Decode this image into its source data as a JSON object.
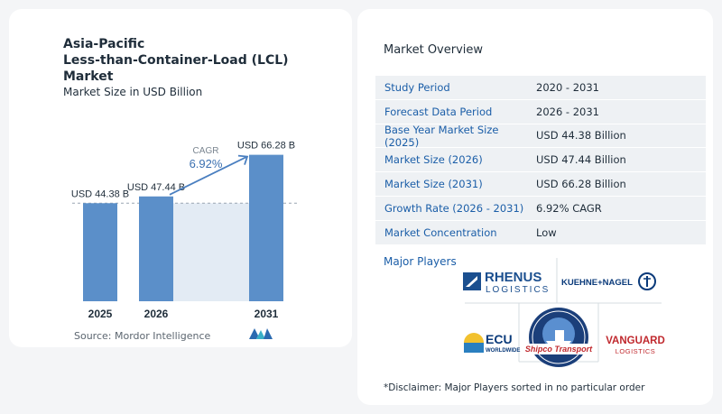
{
  "chart_data": {
    "type": "bar",
    "title": "Asia-Pacific Less-than-Container-Load (LCL) Market",
    "subtitle": "Market Size in USD Billion",
    "categories": [
      "2025",
      "2026",
      "2031"
    ],
    "values": [
      44.38,
      47.44,
      66.28
    ],
    "value_labels": [
      "USD 44.38 B",
      "USD 47.44 B",
      "USD 66.28 B"
    ],
    "cagr_label": "CAGR",
    "cagr_value": "6.92%",
    "bar_color": "#5b8fc9",
    "grid": false
  },
  "header": {
    "title_line1": "Asia-Pacific",
    "title_line2": "Less-than-Container-Load (LCL)",
    "title_line3": "Market",
    "subtitle": "Market Size in USD Billion"
  },
  "source": "Source:  Mordor Intelligence",
  "overview": {
    "title": "Market Overview",
    "rows": [
      {
        "label": "Study Period",
        "value": "2020 - 2031"
      },
      {
        "label": "Forecast Data Period",
        "value": "2026 - 2031"
      },
      {
        "label": "Base Year Market Size (2025)",
        "value": "USD 44.38 Billion"
      },
      {
        "label": "Market Size (2026)",
        "value": "USD 47.44 Billion"
      },
      {
        "label": "Market Size (2031)",
        "value": "USD 66.28 Billion"
      },
      {
        "label": "Growth Rate (2026 - 2031)",
        "value": "6.92% CAGR"
      },
      {
        "label": "Market Concentration",
        "value": "Low"
      }
    ]
  },
  "players": {
    "title": "Major Players",
    "rhenus_top": "RHENUS",
    "rhenus_bottom": "LOGISTICS",
    "kuehne": "KUEHNE+NAGEL",
    "ecu_top": "ECU",
    "ecu_bottom": "WORLDWIDE",
    "shipco": "Shipco Transport",
    "vanguard_top": "VANGUARD",
    "vanguard_bottom": "LOGISTICS"
  },
  "disclaimer": "*Disclaimer: Major Players sorted in no particular order"
}
